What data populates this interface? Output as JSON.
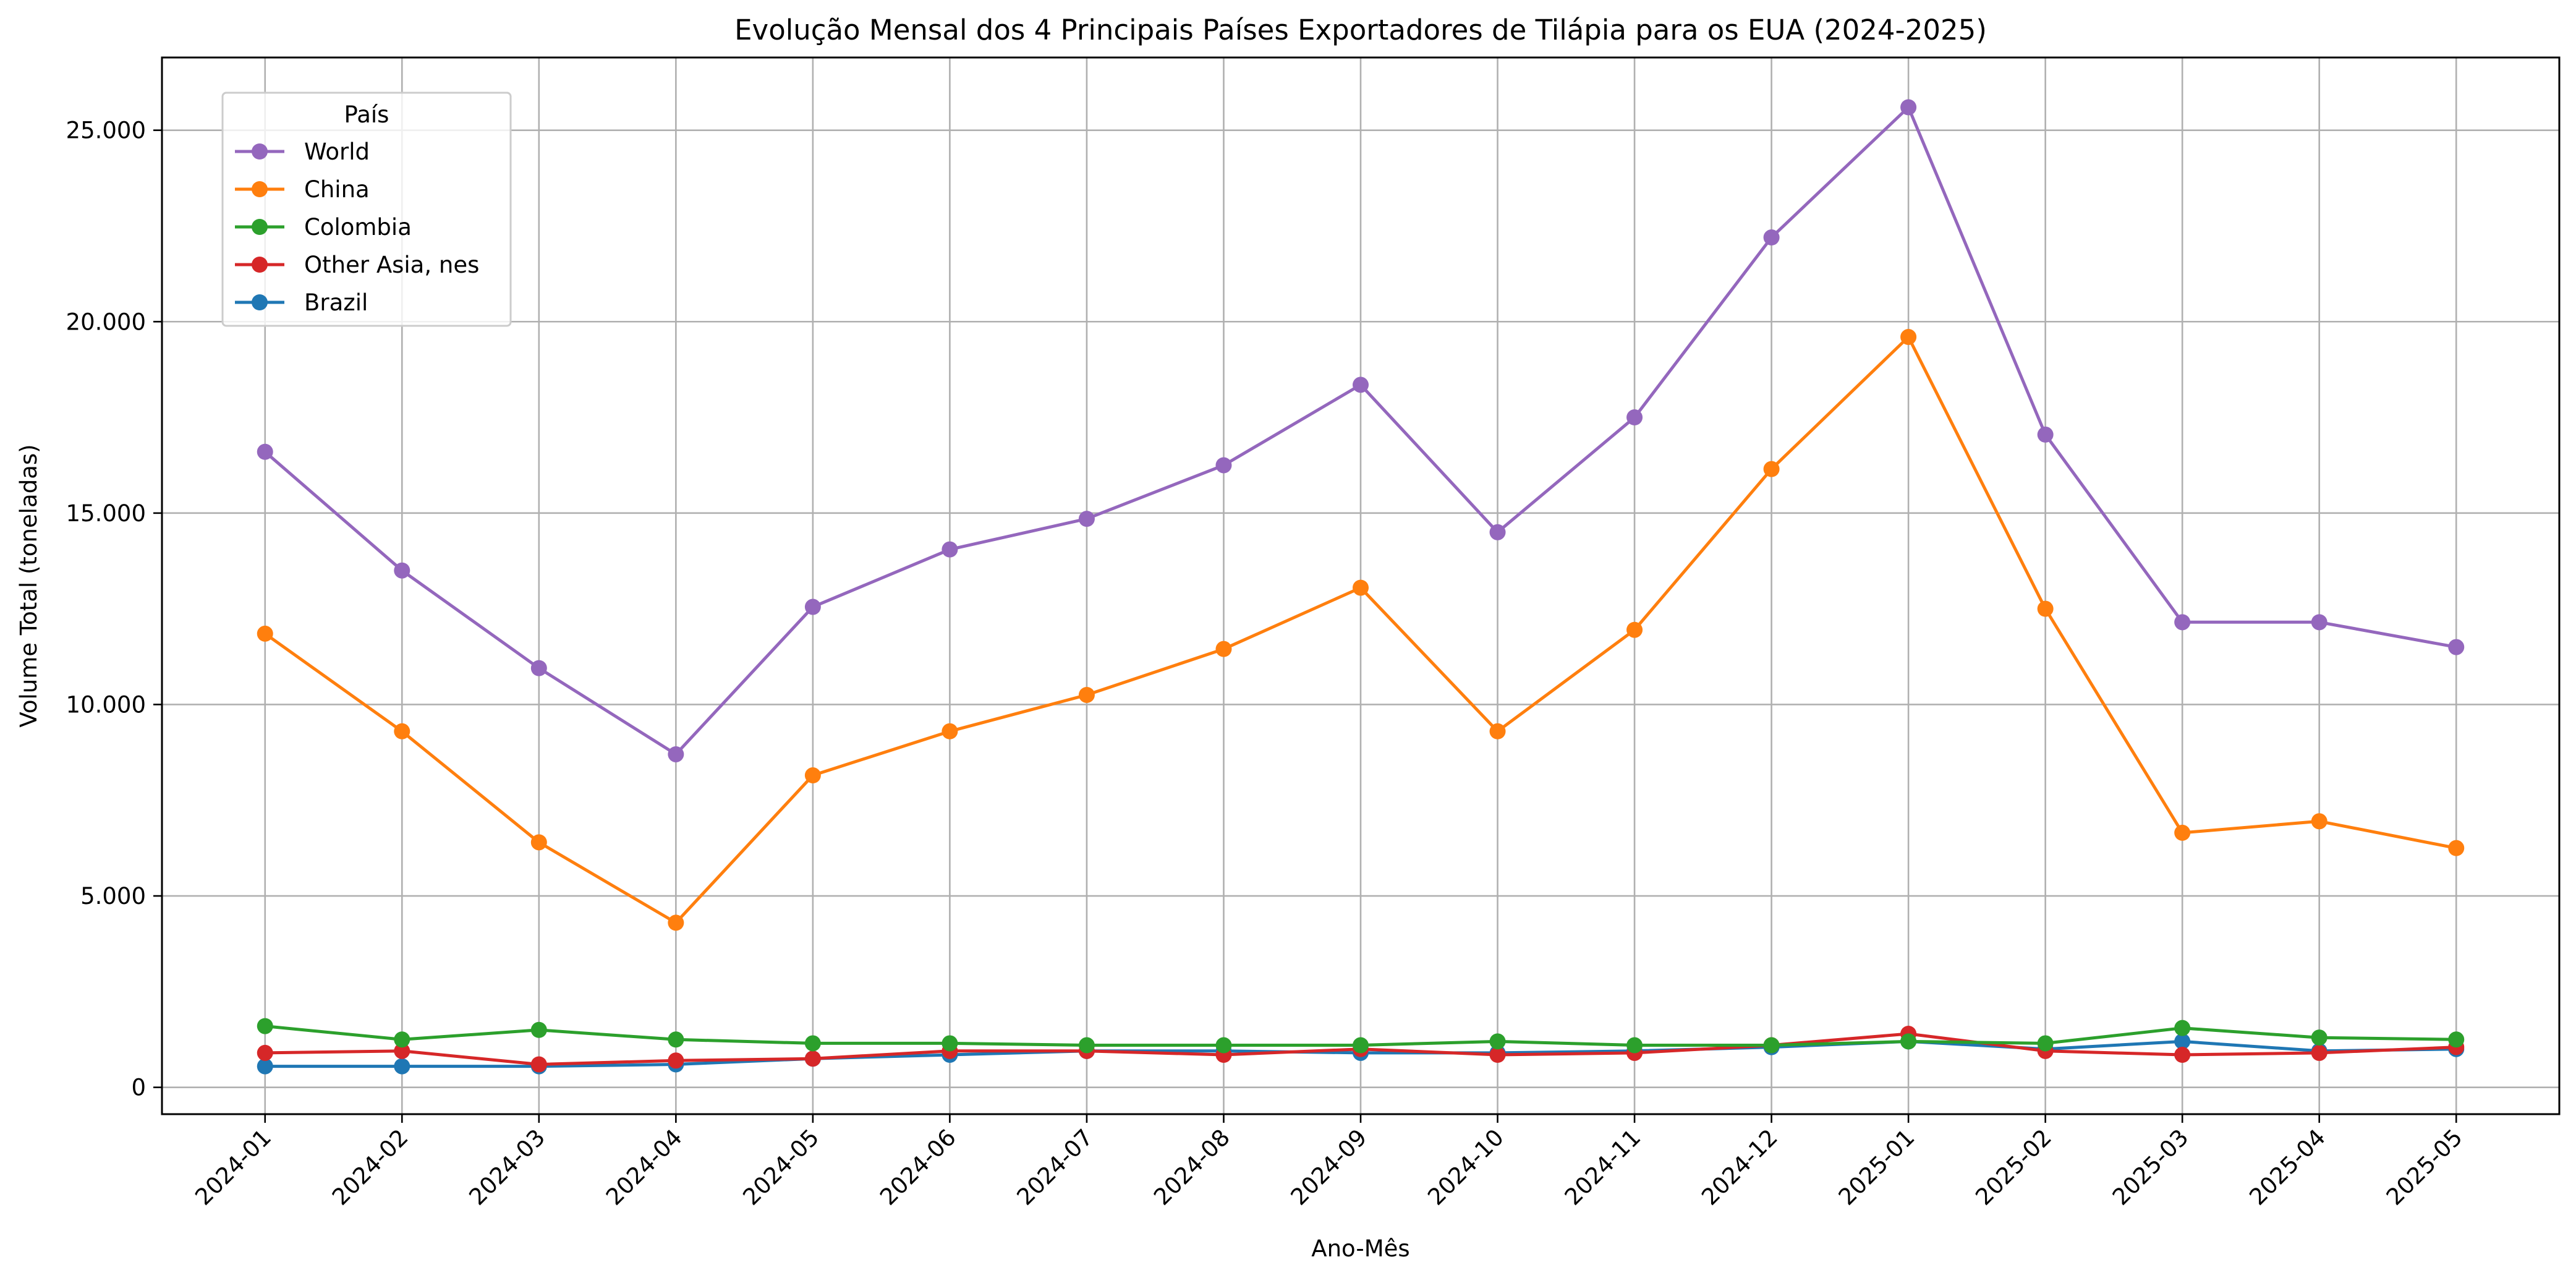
{
  "chart_data": {
    "type": "line",
    "title": "Evolução Mensal dos 4 Principais Países Exportadores de Tilápia para os EUA (2024-2025)",
    "xlabel": "Ano-Mês",
    "ylabel": "Volume Total (toneladas)",
    "ylim": [
      -700,
      26900
    ],
    "grid": true,
    "legend_title": "País",
    "legend_placement": "top-left",
    "categories": [
      "2024-01",
      "2024-02",
      "2024-03",
      "2024-04",
      "2024-05",
      "2024-06",
      "2024-07",
      "2024-08",
      "2024-09",
      "2024-10",
      "2024-11",
      "2024-12",
      "2025-01",
      "2025-02",
      "2025-03",
      "2025-04",
      "2025-05"
    ],
    "y_ticks": [
      {
        "value": 0,
        "label": "0"
      },
      {
        "value": 5000,
        "label": "5.000"
      },
      {
        "value": 10000,
        "label": "10.000"
      },
      {
        "value": 15000,
        "label": "15.000"
      },
      {
        "value": 20000,
        "label": "20.000"
      },
      {
        "value": 25000,
        "label": "25.000"
      }
    ],
    "series": [
      {
        "name": "World",
        "color": "#9467bd",
        "values": [
          16600,
          13500,
          10950,
          8700,
          12550,
          14050,
          14850,
          16250,
          18350,
          14500,
          17500,
          22200,
          25600,
          17050,
          12150,
          12150,
          11500
        ]
      },
      {
        "name": "China",
        "color": "#ff7f0e",
        "values": [
          11850,
          9300,
          6400,
          4300,
          8150,
          9300,
          10250,
          11450,
          13050,
          9300,
          11950,
          16150,
          19600,
          12500,
          6650,
          6950,
          6250
        ]
      },
      {
        "name": "Colombia",
        "color": "#2ca02c",
        "values": [
          1600,
          1250,
          1500,
          1250,
          1150,
          1150,
          1100,
          1100,
          1100,
          1200,
          1100,
          1100,
          1200,
          1150,
          1550,
          1300,
          1250
        ]
      },
      {
        "name": "Other Asia, nes",
        "color": "#d62728",
        "values": [
          900,
          950,
          600,
          700,
          750,
          950,
          950,
          850,
          1000,
          850,
          900,
          1100,
          1400,
          950,
          850,
          900,
          1050
        ]
      },
      {
        "name": "Brazil",
        "color": "#1f77b4",
        "values": [
          550,
          550,
          550,
          600,
          750,
          850,
          950,
          950,
          900,
          900,
          950,
          1050,
          1200,
          1000,
          1200,
          950,
          1000
        ]
      }
    ]
  }
}
